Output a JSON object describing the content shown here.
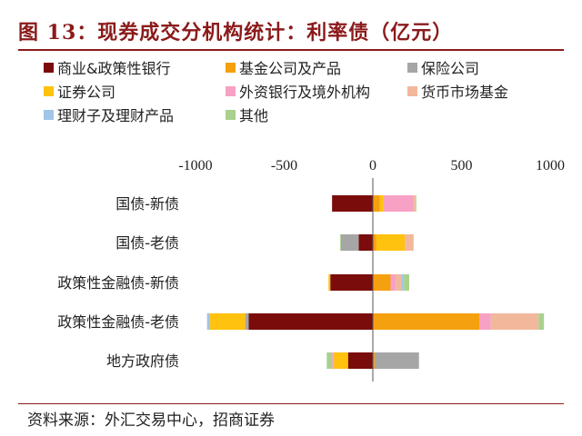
{
  "title": "图 13：现券成交分机构统计：利率债（亿元）",
  "source": "资料来源：外汇交易中心，招商证券",
  "chart_data": {
    "type": "bar",
    "orientation": "horizontal",
    "stacked": true,
    "legend_position": "top",
    "xlim": [
      -1000,
      1000
    ],
    "x_ticks": [
      "-1000",
      "-500",
      "0",
      "500",
      "1000"
    ],
    "x_tick_values": [
      -1000,
      -500,
      0,
      500,
      1000
    ],
    "grid": false,
    "categories": [
      "国债-新债",
      "国债-老债",
      "政策性金融债-新债",
      "政策性金融债-老债",
      "地方政府债"
    ],
    "series": [
      {
        "name": "商业&政策性银行",
        "color": "#7b0c0c",
        "values": [
          -230,
          -80,
          -240,
          -700,
          -140
        ]
      },
      {
        "name": "基金公司及产品",
        "color": "#f5a00f",
        "values": [
          40,
          20,
          100,
          600,
          10
        ]
      },
      {
        "name": "保险公司",
        "color": "#a6a6a6",
        "values": [
          0,
          -100,
          0,
          -20,
          250
        ]
      },
      {
        "name": "证券公司",
        "color": "#ffc20e",
        "values": [
          20,
          160,
          -10,
          -200,
          -80
        ]
      },
      {
        "name": "外资银行及境外机构",
        "color": "#f7a1c4",
        "values": [
          170,
          0,
          30,
          65,
          -10
        ]
      },
      {
        "name": "货币市场基金",
        "color": "#f2b89c",
        "values": [
          10,
          50,
          30,
          270,
          0
        ]
      },
      {
        "name": "理财子及理财产品",
        "color": "#9fc5e8",
        "values": [
          0,
          0,
          15,
          -15,
          0
        ]
      },
      {
        "name": "其他",
        "color": "#a9d18e",
        "values": [
          5,
          -5,
          30,
          30,
          -30
        ]
      }
    ]
  }
}
